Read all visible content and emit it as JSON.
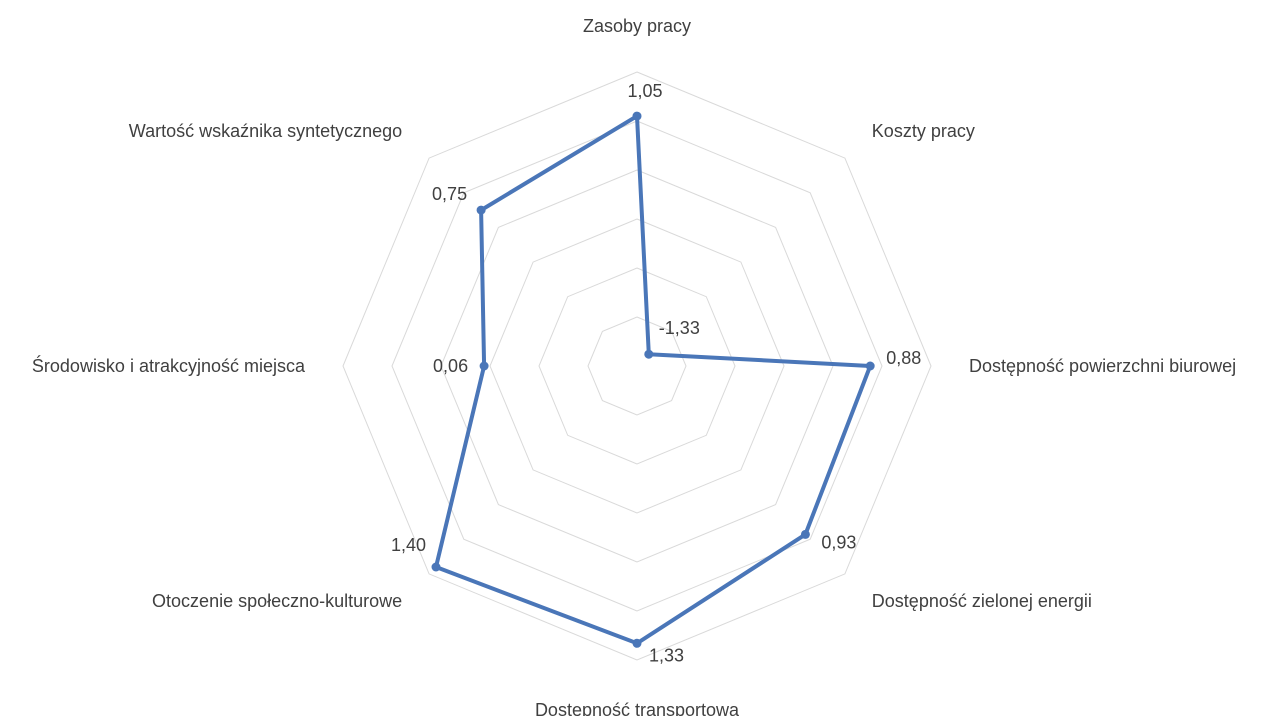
{
  "chart_data": {
    "type": "radar",
    "title": "",
    "axes": [
      "Zasoby pracy",
      "Koszty pracy",
      "Dostępność powierzchni biurowej",
      "Dostępność zielonej energii",
      "Dostępność transportowa",
      "Otoczenie społeczno-kulturowe",
      "Środowisko i atrakcyjność miejsca",
      "Wartość wskaźnika syntetycznego"
    ],
    "series": [
      {
        "values": [
          1.05,
          -1.33,
          0.88,
          0.93,
          1.33,
          1.4,
          0.06,
          0.75
        ],
        "value_labels": [
          "1,05",
          "-1,33",
          "0,88",
          "0,93",
          "1,33",
          "1,40",
          "0,06",
          "0,75"
        ],
        "color": "#4a76b8"
      }
    ],
    "radial_range": [
      -1.5,
      1.5
    ],
    "grid_rings": 6,
    "grid": true,
    "legend": "none",
    "grid_color": "#d9d9d9",
    "text_color": "#404040"
  }
}
